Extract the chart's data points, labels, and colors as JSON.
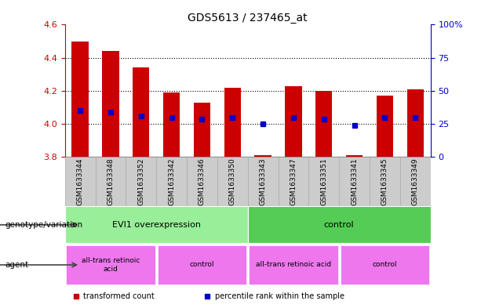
{
  "title": "GDS5613 / 237465_at",
  "samples": [
    "GSM1633344",
    "GSM1633348",
    "GSM1633352",
    "GSM1633342",
    "GSM1633346",
    "GSM1633350",
    "GSM1633343",
    "GSM1633347",
    "GSM1633351",
    "GSM1633341",
    "GSM1633345",
    "GSM1633349"
  ],
  "bar_tops": [
    4.5,
    4.44,
    4.34,
    4.19,
    4.13,
    4.22,
    3.81,
    4.23,
    4.2,
    3.81,
    4.17,
    4.21
  ],
  "bar_bottoms": [
    3.8,
    3.8,
    3.8,
    3.8,
    3.8,
    3.8,
    3.8,
    3.8,
    3.8,
    3.8,
    3.8,
    3.8
  ],
  "percentile_values": [
    4.08,
    4.07,
    4.05,
    4.04,
    4.03,
    4.04,
    4.0,
    4.04,
    4.03,
    3.99,
    4.04,
    4.04
  ],
  "ylim_left": [
    3.8,
    4.6
  ],
  "ylim_right": [
    0,
    100
  ],
  "yticks_left": [
    3.8,
    4.0,
    4.2,
    4.4,
    4.6
  ],
  "yticks_right": [
    0,
    25,
    50,
    75,
    100
  ],
  "bar_color": "#cc0000",
  "percentile_color": "#0000cc",
  "bar_width": 0.55,
  "genotype_groups": [
    {
      "label": "EVI1 overexpression",
      "start": 0,
      "end": 6,
      "color": "#99ee99"
    },
    {
      "label": "control",
      "start": 6,
      "end": 12,
      "color": "#55cc55"
    }
  ],
  "agent_groups": [
    {
      "label": "all-trans retinoic\nacid",
      "start": 0,
      "end": 3,
      "color": "#ee77ee"
    },
    {
      "label": "control",
      "start": 3,
      "end": 6,
      "color": "#ee77ee"
    },
    {
      "label": "all-trans retinoic acid",
      "start": 6,
      "end": 9,
      "color": "#ee77ee"
    },
    {
      "label": "control",
      "start": 9,
      "end": 12,
      "color": "#ee77ee"
    }
  ],
  "legend_items": [
    {
      "label": "transformed count",
      "color": "#cc0000"
    },
    {
      "label": "percentile rank within the sample",
      "color": "#0000cc"
    }
  ],
  "tick_label_color_left": "#cc0000",
  "tick_label_color_right": "#0000cc",
  "genotype_row_label": "genotype/variation",
  "agent_row_label": "agent",
  "col_bg_color": "#cccccc",
  "col_border_color": "#888888"
}
